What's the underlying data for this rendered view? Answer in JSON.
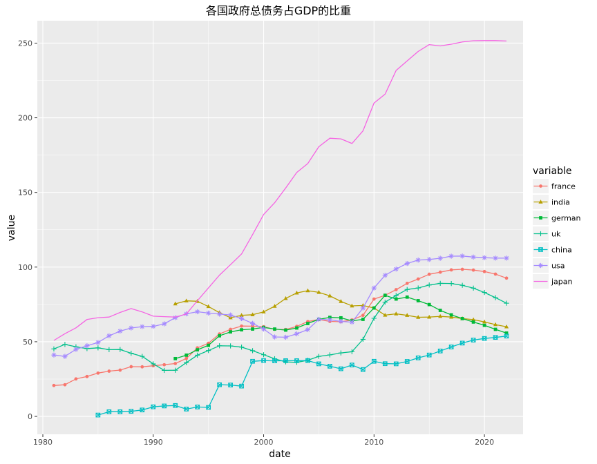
{
  "chart_data": {
    "type": "line",
    "title": "各国政府总债务占GDP的比重",
    "xlabel": "date",
    "ylabel": "value",
    "xlim": [
      1979.5,
      2023.5
    ],
    "ylim": [
      -12,
      265
    ],
    "x_ticks": [
      1980,
      1990,
      2000,
      2010,
      2020
    ],
    "y_ticks": [
      0,
      50,
      100,
      150,
      200,
      250
    ],
    "grid": true,
    "legend": {
      "title": "variable",
      "position": "right"
    },
    "series": [
      {
        "name": "france",
        "color": "#F8766D",
        "marker": "circle",
        "points": [
          [
            1981,
            20.7
          ],
          [
            1982,
            21.2
          ],
          [
            1983,
            25.1
          ],
          [
            1984,
            26.7
          ],
          [
            1985,
            29.0
          ],
          [
            1986,
            30.3
          ],
          [
            1987,
            31.0
          ],
          [
            1988,
            33.3
          ],
          [
            1989,
            33.2
          ],
          [
            1990,
            33.9
          ],
          [
            1991,
            34.6
          ],
          [
            1992,
            35.4
          ],
          [
            1993,
            38.8
          ],
          [
            1994,
            45.9
          ],
          [
            1995,
            49.0
          ],
          [
            1996,
            55.2
          ],
          [
            1997,
            58.3
          ],
          [
            1998,
            60.5
          ],
          [
            1999,
            60.4
          ],
          [
            2000,
            60.1
          ],
          [
            2001,
            58.3
          ],
          [
            2002,
            58.2
          ],
          [
            2003,
            60.3
          ],
          [
            2004,
            63.5
          ],
          [
            2005,
            64.9
          ],
          [
            2006,
            63.6
          ],
          [
            2007,
            63.4
          ],
          [
            2008,
            64.6
          ],
          [
            2009,
            67.7
          ],
          [
            2010,
            78.6
          ],
          [
            2011,
            81.1
          ],
          [
            2012,
            84.9
          ],
          [
            2013,
            89.1
          ],
          [
            2014,
            92.0
          ],
          [
            2015,
            95.2
          ],
          [
            2016,
            96.6
          ],
          [
            2017,
            98.1
          ],
          [
            2018,
            98.5
          ],
          [
            2019,
            98.0
          ],
          [
            2020,
            97.0
          ],
          [
            2021,
            95.3
          ],
          [
            2022,
            92.6
          ]
        ]
      },
      {
        "name": "india",
        "color": "#B79F00",
        "marker": "triangle",
        "points": [
          [
            1992,
            75.4
          ],
          [
            1993,
            77.4
          ],
          [
            1994,
            77.1
          ],
          [
            1995,
            73.6
          ],
          [
            1996,
            69.5
          ],
          [
            1997,
            66.1
          ],
          [
            1998,
            67.7
          ],
          [
            1999,
            68.1
          ],
          [
            2000,
            70.0
          ],
          [
            2001,
            73.8
          ],
          [
            2002,
            79.0
          ],
          [
            2003,
            82.7
          ],
          [
            2004,
            84.2
          ],
          [
            2005,
            83.1
          ],
          [
            2006,
            80.7
          ],
          [
            2007,
            77.0
          ],
          [
            2008,
            74.0
          ],
          [
            2009,
            74.3
          ],
          [
            2010,
            72.6
          ],
          [
            2011,
            67.8
          ],
          [
            2012,
            68.7
          ],
          [
            2013,
            67.7
          ],
          [
            2014,
            66.4
          ],
          [
            2015,
            66.5
          ],
          [
            2016,
            67.0
          ],
          [
            2017,
            66.5
          ],
          [
            2018,
            65.5
          ],
          [
            2019,
            64.8
          ],
          [
            2020,
            63.3
          ],
          [
            2021,
            61.5
          ],
          [
            2022,
            60.0
          ]
        ]
      },
      {
        "name": "german",
        "color": "#00BA38",
        "marker": "square",
        "points": [
          [
            1992,
            38.7
          ],
          [
            1993,
            41.0
          ],
          [
            1994,
            44.6
          ],
          [
            1995,
            47.6
          ],
          [
            1996,
            54.0
          ],
          [
            1997,
            56.6
          ],
          [
            1998,
            58.0
          ],
          [
            1999,
            58.5
          ],
          [
            2000,
            59.6
          ],
          [
            2001,
            58.5
          ],
          [
            2002,
            57.8
          ],
          [
            2003,
            59.2
          ],
          [
            2004,
            62.2
          ],
          [
            2005,
            65.0
          ],
          [
            2006,
            66.3
          ],
          [
            2007,
            66.0
          ],
          [
            2008,
            64.0
          ],
          [
            2009,
            65.0
          ],
          [
            2010,
            72.6
          ],
          [
            2011,
            81.1
          ],
          [
            2012,
            78.6
          ],
          [
            2013,
            79.9
          ],
          [
            2014,
            77.5
          ],
          [
            2015,
            74.9
          ],
          [
            2016,
            71.0
          ],
          [
            2017,
            68.0
          ],
          [
            2018,
            65.5
          ],
          [
            2019,
            63.2
          ],
          [
            2020,
            61.0
          ],
          [
            2021,
            58.3
          ],
          [
            2022,
            55.8
          ]
        ]
      },
      {
        "name": "uk",
        "color": "#00C08B",
        "marker": "plus",
        "points": [
          [
            1981,
            45.2
          ],
          [
            1982,
            48.2
          ],
          [
            1983,
            46.6
          ],
          [
            1984,
            45.4
          ],
          [
            1985,
            45.9
          ],
          [
            1986,
            44.7
          ],
          [
            1987,
            44.8
          ],
          [
            1988,
            42.3
          ],
          [
            1989,
            40.2
          ],
          [
            1990,
            35.2
          ],
          [
            1991,
            30.8
          ],
          [
            1992,
            30.9
          ],
          [
            1993,
            36.0
          ],
          [
            1994,
            41.0
          ],
          [
            1995,
            44.1
          ],
          [
            1996,
            47.3
          ],
          [
            1997,
            47.2
          ],
          [
            1998,
            46.4
          ],
          [
            1999,
            44.0
          ],
          [
            2000,
            41.3
          ],
          [
            2001,
            38.6
          ],
          [
            2002,
            36.5
          ],
          [
            2003,
            36.2
          ],
          [
            2004,
            37.6
          ],
          [
            2005,
            40.2
          ],
          [
            2006,
            41.2
          ],
          [
            2007,
            42.5
          ],
          [
            2008,
            43.3
          ],
          [
            2009,
            51.6
          ],
          [
            2010,
            65.7
          ],
          [
            2011,
            76.5
          ],
          [
            2012,
            81.0
          ],
          [
            2013,
            85.0
          ],
          [
            2014,
            86.0
          ],
          [
            2015,
            88.0
          ],
          [
            2016,
            89.1
          ],
          [
            2017,
            89.0
          ],
          [
            2018,
            87.8
          ],
          [
            2019,
            85.9
          ],
          [
            2020,
            83.0
          ],
          [
            2021,
            79.5
          ],
          [
            2022,
            75.8
          ]
        ]
      },
      {
        "name": "china",
        "color": "#00BFC4",
        "marker": "square-x",
        "points": [
          [
            1985,
            0.9
          ],
          [
            1986,
            3.1
          ],
          [
            1987,
            3.1
          ],
          [
            1988,
            3.4
          ],
          [
            1989,
            4.3
          ],
          [
            1990,
            6.4
          ],
          [
            1991,
            7.0
          ],
          [
            1992,
            7.3
          ],
          [
            1993,
            4.9
          ],
          [
            1994,
            6.3
          ],
          [
            1995,
            6.0
          ],
          [
            1996,
            21.2
          ],
          [
            1997,
            21.0
          ],
          [
            1998,
            20.3
          ],
          [
            1999,
            36.9
          ],
          [
            2000,
            37.4
          ],
          [
            2001,
            37.2
          ],
          [
            2002,
            37.3
          ],
          [
            2003,
            37.3
          ],
          [
            2004,
            37.4
          ],
          [
            2005,
            35.2
          ],
          [
            2006,
            33.6
          ],
          [
            2007,
            31.9
          ],
          [
            2008,
            34.4
          ],
          [
            2009,
            31.4
          ],
          [
            2010,
            36.9
          ],
          [
            2011,
            35.3
          ],
          [
            2012,
            35.2
          ],
          [
            2013,
            36.8
          ],
          [
            2014,
            39.2
          ],
          [
            2015,
            41.1
          ],
          [
            2016,
            43.8
          ],
          [
            2017,
            46.5
          ],
          [
            2018,
            49.1
          ],
          [
            2019,
            51.1
          ],
          [
            2020,
            52.2
          ],
          [
            2021,
            52.9
          ],
          [
            2022,
            53.8
          ]
        ]
      },
      {
        "name": "usa",
        "color": "#A58AFF",
        "marker": "asterisk",
        "points": [
          [
            1981,
            41.1
          ],
          [
            1982,
            40.2
          ],
          [
            1983,
            44.9
          ],
          [
            1984,
            47.3
          ],
          [
            1985,
            49.5
          ],
          [
            1986,
            54.0
          ],
          [
            1987,
            57.1
          ],
          [
            1988,
            59.2
          ],
          [
            1989,
            60.1
          ],
          [
            1990,
            60.3
          ],
          [
            1991,
            62.0
          ],
          [
            1992,
            66.1
          ],
          [
            1993,
            68.7
          ],
          [
            1994,
            70.1
          ],
          [
            1995,
            69.2
          ],
          [
            1996,
            68.5
          ],
          [
            1997,
            67.9
          ],
          [
            1998,
            65.5
          ],
          [
            1999,
            62.3
          ],
          [
            2000,
            58.5
          ],
          [
            2001,
            53.2
          ],
          [
            2002,
            53.0
          ],
          [
            2003,
            55.3
          ],
          [
            2004,
            58.1
          ],
          [
            2005,
            65.0
          ],
          [
            2006,
            64.7
          ],
          [
            2007,
            63.6
          ],
          [
            2008,
            63.1
          ],
          [
            2009,
            72.6
          ],
          [
            2010,
            86.0
          ],
          [
            2011,
            94.5
          ],
          [
            2012,
            98.7
          ],
          [
            2013,
            102.4
          ],
          [
            2014,
            104.7
          ],
          [
            2015,
            105.1
          ],
          [
            2016,
            105.9
          ],
          [
            2017,
            107.3
          ],
          [
            2018,
            107.4
          ],
          [
            2019,
            106.7
          ],
          [
            2020,
            106.3
          ],
          [
            2021,
            106.0
          ],
          [
            2022,
            106.0
          ]
        ]
      },
      {
        "name": "japan",
        "color": "#F564E3",
        "marker": "none",
        "points": [
          [
            1981,
            50.9
          ],
          [
            1982,
            55.4
          ],
          [
            1983,
            59.3
          ],
          [
            1984,
            64.9
          ],
          [
            1985,
            66.1
          ],
          [
            1986,
            66.5
          ],
          [
            1987,
            69.6
          ],
          [
            1988,
            72.2
          ],
          [
            1989,
            70.0
          ],
          [
            1990,
            67.1
          ],
          [
            1991,
            66.8
          ],
          [
            1992,
            66.5
          ],
          [
            1993,
            68.6
          ],
          [
            1994,
            77.5
          ],
          [
            1995,
            86.0
          ],
          [
            1996,
            94.6
          ],
          [
            1997,
            101.6
          ],
          [
            1998,
            108.8
          ],
          [
            1999,
            121.8
          ],
          [
            2000,
            135.2
          ],
          [
            2001,
            143.1
          ],
          [
            2002,
            153.0
          ],
          [
            2003,
            163.4
          ],
          [
            2004,
            169.3
          ],
          [
            2005,
            180.6
          ],
          [
            2006,
            186.3
          ],
          [
            2007,
            185.9
          ],
          [
            2008,
            182.8
          ],
          [
            2009,
            191.2
          ],
          [
            2010,
            209.9
          ],
          [
            2011,
            215.8
          ],
          [
            2012,
            231.7
          ],
          [
            2013,
            238.1
          ],
          [
            2014,
            244.4
          ],
          [
            2015,
            249.0
          ],
          [
            2016,
            248.1
          ],
          [
            2017,
            249.3
          ],
          [
            2018,
            250.8
          ],
          [
            2019,
            251.6
          ],
          [
            2020,
            251.7
          ],
          [
            2021,
            251.7
          ],
          [
            2022,
            251.4
          ]
        ]
      }
    ]
  }
}
